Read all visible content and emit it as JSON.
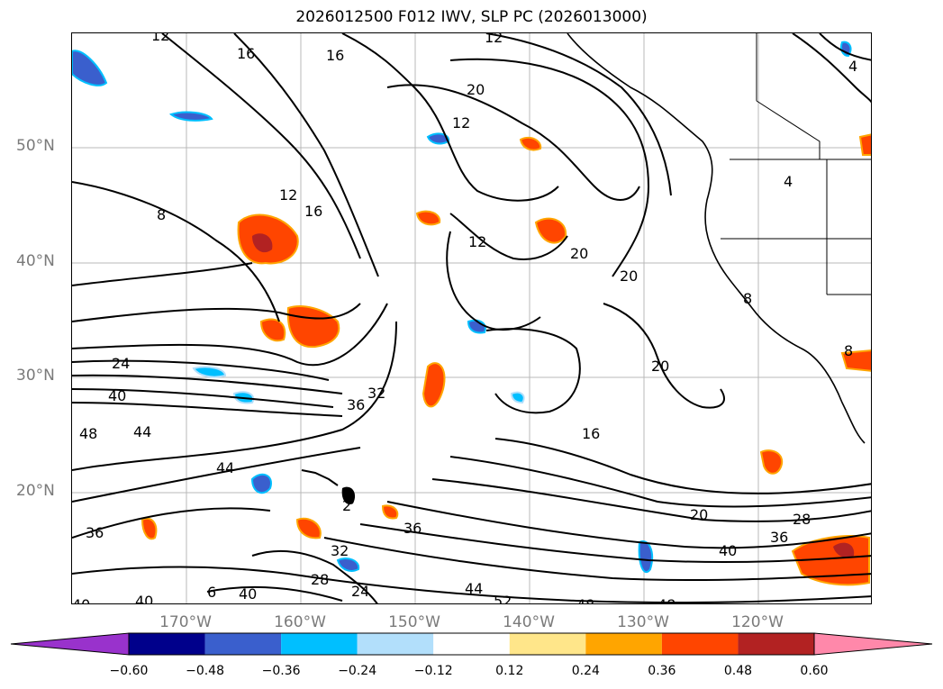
{
  "title": "2026012500 F012 IWV, SLP PC (2026013000)",
  "lat_labels": [
    "50°N",
    "40°N",
    "30°N",
    "20°N"
  ],
  "lon_labels": [
    "170°W",
    "160°W",
    "150°W",
    "140°W",
    "130°W",
    "120°W"
  ],
  "colorbar": {
    "ticks": [
      "−0.60",
      "−0.48",
      "−0.36",
      "−0.24",
      "−0.12",
      "0.12",
      "0.24",
      "0.36",
      "0.48",
      "0.60"
    ],
    "colors": [
      "#9932cc",
      "#00008b",
      "#3a5fcd",
      "#00bfff",
      "#b2dffb",
      "#ffffff",
      "#ffe68a",
      "#ffa500",
      "#ff4500",
      "#b22222",
      "#ff88aa"
    ]
  },
  "contour_labels": [
    "12",
    "16",
    "16",
    "12",
    "20",
    "12",
    "8",
    "12",
    "16",
    "12",
    "20",
    "20",
    "20",
    "24",
    "40",
    "48",
    "44",
    "36",
    "32",
    "44",
    "2",
    "36",
    "16",
    "20",
    "28",
    "36",
    "40",
    "36",
    "32",
    "28",
    "24",
    "40",
    "40",
    "44",
    "52",
    "48",
    "48",
    "6",
    "40",
    "8",
    "8",
    "4",
    "4"
  ],
  "colors": {
    "contour": "#000000",
    "grid": "#b8b8b8",
    "coast": "#000000"
  }
}
